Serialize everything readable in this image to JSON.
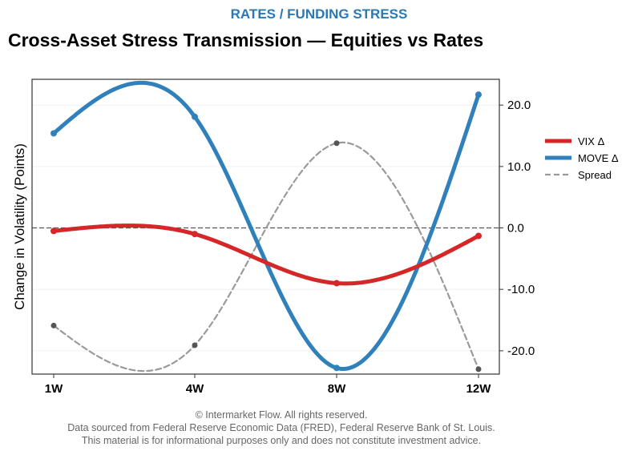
{
  "kicker": "RATES / FUNDING STRESS",
  "title": "Cross-Asset Stress Transmission — Equities vs Rates",
  "footer": {
    "copyright": "© Intermarket Flow. All rights reserved.",
    "source": "Data sourced from Federal Reserve Economic Data (FRED), Federal Reserve Bank of St. Louis.",
    "disclaimer": "This material is for informational purposes only and does not constitute investment advice."
  },
  "chart_data": {
    "type": "line",
    "categories": [
      "1W",
      "4W",
      "8W",
      "12W"
    ],
    "ylabel": "Change in Volatility (Points)",
    "y_axis_position": "right",
    "ylim": [
      -23.8,
      24.2
    ],
    "yticks": [
      20,
      10,
      0,
      -10,
      -20
    ],
    "ytick_labels": [
      "20.0",
      "10.0",
      "0.0",
      "-10.0",
      "-20.0"
    ],
    "zero_line": true,
    "legend_position": "outside right",
    "smooth": true,
    "series": [
      {
        "name": "VIX Δ",
        "values": [
          -0.5,
          -1.0,
          -9.0,
          -1.3
        ],
        "color": "#d62728",
        "style": "solid"
      },
      {
        "name": "MOVE Δ",
        "values": [
          15.4,
          18.1,
          -22.8,
          21.7
        ],
        "color": "#2f80bb",
        "style": "solid"
      },
      {
        "name": "Spread",
        "values": [
          -15.9,
          -19.1,
          13.8,
          -23.0
        ],
        "color": "#9a9a9a",
        "style": "dashed"
      }
    ]
  }
}
